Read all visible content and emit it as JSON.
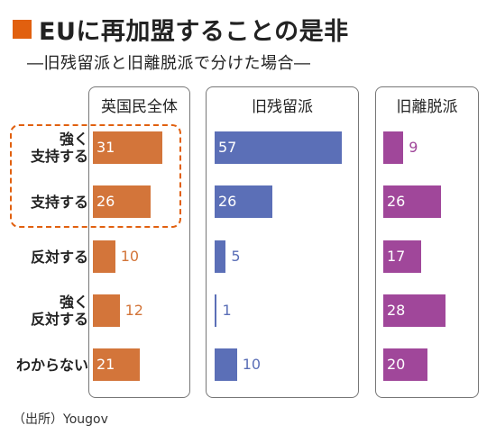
{
  "title": "EUに再加盟することの是非",
  "subtitle": "―旧残留派と旧離脱派で分けた場合―",
  "source": "（出所）Yougov",
  "colors": {
    "accent": "#e1600f"
  },
  "chart_data": {
    "type": "bar",
    "orientation": "horizontal",
    "categories": [
      [
        "強く",
        "支持する"
      ],
      [
        "支持する"
      ],
      [
        "反対する"
      ],
      [
        "強く",
        "反対する"
      ],
      [
        "わからない"
      ]
    ],
    "series": [
      {
        "name": "英国民全体",
        "values": [
          31,
          26,
          10,
          12,
          21
        ],
        "color": "#d3753a"
      },
      {
        "name": "旧残留派",
        "values": [
          57,
          26,
          5,
          1,
          10
        ],
        "color": "#5b6fb7"
      },
      {
        "name": "旧離脱派",
        "values": [
          9,
          26,
          17,
          28,
          20
        ],
        "color": "#a0479a"
      }
    ],
    "highlighted_categories": [
      0,
      1
    ],
    "unit": "%"
  }
}
